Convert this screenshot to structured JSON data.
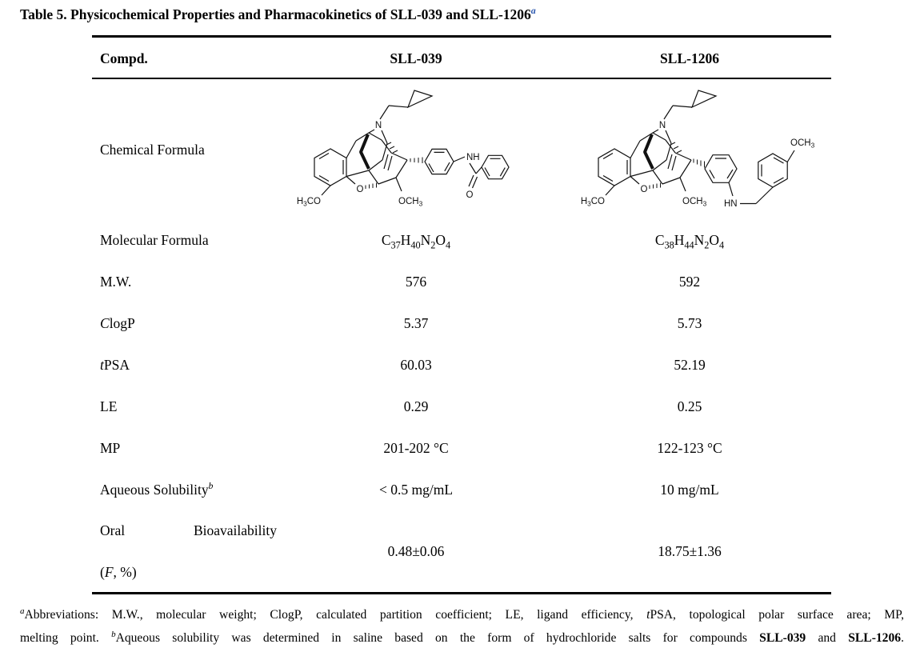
{
  "title": {
    "text": "Table 5. Physicochemical Properties and Pharmacokinetics of SLL-039 and SLL-1206",
    "sup": "a",
    "sup_color": "#2b57ae"
  },
  "table": {
    "header": {
      "compound": "Compd.",
      "col1": "SLL-039",
      "col2": "SLL-1206"
    },
    "chemical_formula_label": "Chemical Formula",
    "rows": [
      {
        "label": "Molecular Formula",
        "sll039_formula": "C37H40N2O4",
        "sll1206_formula": "C38H44N2O4"
      },
      {
        "label": "M.W.",
        "sll039": "576",
        "sll1206": "592"
      },
      {
        "label_italic": "C",
        "label": "logP",
        "sll039": "5.37",
        "sll1206": "5.73"
      },
      {
        "label_italic": "t",
        "label": "PSA",
        "sll039": "60.03",
        "sll1206": "52.19"
      },
      {
        "label": "LE",
        "sll039": "0.29",
        "sll1206": "0.25"
      },
      {
        "label": "MP",
        "sll039": "201-202 °C",
        "sll1206": "122-123 °C"
      },
      {
        "label": "Aqueous Solubility",
        "label_sup": "b",
        "sll039": "< 0.5 mg/mL",
        "sll1206": "10 mg/mL"
      },
      {
        "label_word1": "Oral",
        "label_word2": "Bioavailability",
        "label_line2_pre": "(",
        "label_line2_italic": "F",
        "label_line2_post": ", %)",
        "sll039": "0.48±0.06",
        "sll1206": "18.75±1.36"
      }
    ]
  },
  "structures": {
    "sll039": {
      "n": "N",
      "methoxy_left": "H3CO",
      "ether_o": "O",
      "methoxy_bottom": "OCH3",
      "amide_nh": "NH",
      "carbonyl_o": "O"
    },
    "sll1206": {
      "n": "N",
      "methoxy_left": "H3CO",
      "ether_o": "O",
      "methoxy_bottom": "OCH3",
      "amine_hn": "HN",
      "aryl_methoxy": "OCH3"
    }
  },
  "footnote": {
    "line1": [
      {
        "s": "sup",
        "t": "a"
      },
      {
        "t": "Abbreviations: M.W., molecular weight; ClogP, calculated partition coefficient; LE, ligand efficiency, "
      },
      {
        "s": "i",
        "t": "t"
      },
      {
        "t": "PSA, topological polar surface area; MP,"
      }
    ],
    "line2": [
      {
        "t": "melting point. "
      },
      {
        "s": "sup",
        "t": "b"
      },
      {
        "t": "Aqueous solubility was determined in saline based on the form of hydrochloride salts for compounds "
      },
      {
        "s": "b",
        "t": "SLL-039"
      },
      {
        "t": " and "
      },
      {
        "s": "b",
        "t": "SLL-1206"
      },
      {
        "t": "."
      }
    ]
  }
}
